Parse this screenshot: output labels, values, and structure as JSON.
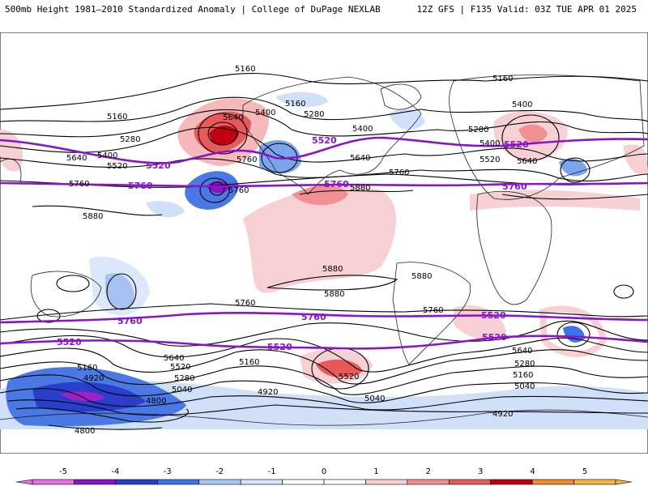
{
  "header": {
    "left_title": "500mb Height 1981–2010 Standardized Anomaly | College of DuPage NEXLAB",
    "right_title": "12Z GFS | F135 Valid: 03Z TUE APR 01 2025"
  },
  "contour_labels": {
    "black": [
      "5160",
      "5160",
      "5160",
      "5160",
      "5400",
      "5400",
      "5400",
      "5400",
      "5400",
      "5280",
      "5280",
      "5280",
      "5280",
      "5640",
      "5640",
      "5640",
      "5640",
      "5640",
      "5640",
      "5520",
      "5520",
      "5520",
      "5520",
      "5760",
      "5760",
      "5760",
      "5760",
      "5760",
      "5760",
      "5880",
      "5880",
      "5880",
      "5880",
      "5880",
      "5040",
      "5040",
      "5040",
      "4920",
      "4920",
      "4920",
      "4800",
      "4800",
      "5160",
      "5160",
      "5280",
      "5160"
    ],
    "purple": [
      "5520",
      "5520",
      "5520",
      "5520",
      "5760",
      "5760",
      "5760",
      "5760",
      "5760",
      "5520",
      "5520",
      "5520"
    ]
  },
  "legend": {
    "ticks": [
      "-5",
      "-4",
      "-3",
      "-2",
      "-1",
      "0",
      "1",
      "2",
      "3",
      "4",
      "5"
    ],
    "colors": [
      "#e86ee8",
      "#8a14c8",
      "#2a3ecc",
      "#3f72e8",
      "#a8c8f4",
      "#d4e4fa",
      "#ffffff",
      "#ffffff",
      "#f6d0d2",
      "#f09092",
      "#e85a5a",
      "#c00010",
      "#f08c2c",
      "#f6b440"
    ]
  }
}
